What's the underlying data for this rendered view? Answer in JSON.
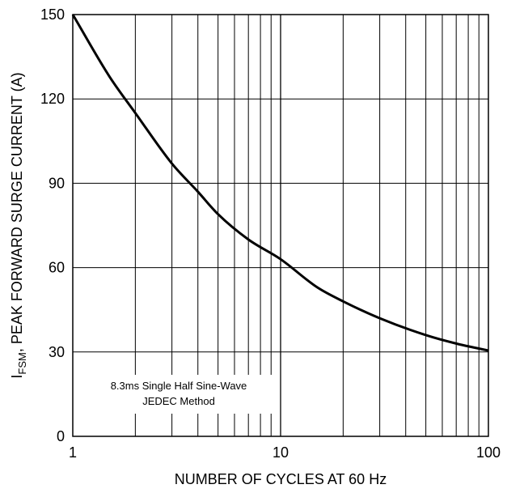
{
  "chart_data": {
    "type": "line",
    "x_scale": "log",
    "xlim": [
      1,
      100
    ],
    "ylim": [
      0,
      150
    ],
    "x_ticks": [
      1,
      10,
      100
    ],
    "y_ticks": [
      0,
      30,
      60,
      90,
      120,
      150
    ],
    "xlabel": "NUMBER OF CYCLES AT 60 Hz",
    "ylabel_prefix": "I",
    "ylabel_subscript": "FSM",
    "ylabel_rest": ", PEAK FORWARD SURGE CURRENT (A)",
    "grid": true,
    "annotation": [
      "8.3ms Single Half Sine-Wave",
      "JEDEC Method"
    ],
    "series": [
      {
        "x": [
          1,
          1.5,
          2,
          3,
          4,
          5,
          7,
          10,
          15,
          20,
          30,
          50,
          70,
          100
        ],
        "y": [
          150,
          128,
          115,
          97,
          87,
          79,
          70,
          63,
          53,
          48,
          42,
          36,
          33,
          30.5
        ]
      }
    ]
  }
}
